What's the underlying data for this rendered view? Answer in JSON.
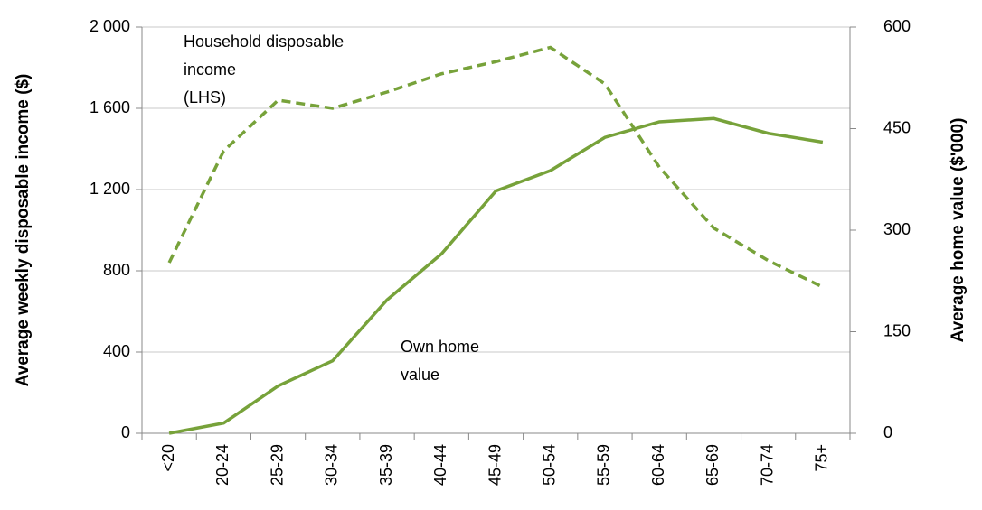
{
  "chart_data": {
    "type": "line",
    "categories": [
      "<20",
      "20-24",
      "25-29",
      "30-34",
      "35-39",
      "40-44",
      "45-49",
      "50-54",
      "55-59",
      "60-64",
      "65-69",
      "70-74",
      "75+"
    ],
    "y_label": "Average weekly disposable income ($)",
    "y2_label": "Average home value ($'000)",
    "ylim": [
      0,
      2000
    ],
    "yticks": [
      0,
      400,
      800,
      {
        "value": 1200,
        "label": "1 200"
      },
      {
        "value": 1600,
        "label": "1 600"
      },
      {
        "value": 2000,
        "label": "2 000"
      }
    ],
    "y2lim": [
      0,
      600
    ],
    "y2ticks": [
      0,
      150,
      300,
      450,
      600
    ],
    "grid": true,
    "series": [
      {
        "name": "Household disposable income (LHS)",
        "color": "#77a23a",
        "line_style": "dashed",
        "values": [
          840,
          1390,
          1640,
          1600,
          1680,
          1770,
          1830,
          1900,
          1720,
          1310,
          1010,
          850,
          720
        ]
      },
      {
        "name": "Own home value",
        "color": "#77a23a",
        "line_style": "solid",
        "axis": "y2",
        "values": [
          0,
          15,
          70,
          107,
          197,
          265,
          358,
          388,
          437,
          460,
          465,
          443,
          430
        ]
      }
    ],
    "annotations": [
      {
        "lines": [
          "Household disposable",
          "income",
          "(LHS)"
        ]
      },
      {
        "lines": [
          "Own home",
          "value"
        ]
      }
    ]
  }
}
